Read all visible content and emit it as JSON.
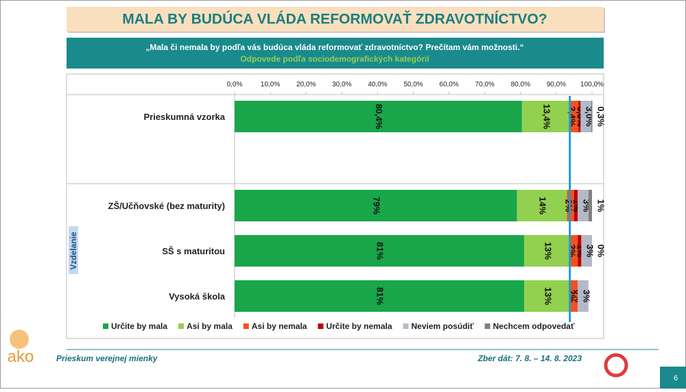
{
  "chart_data": {
    "type": "stacked-barh",
    "title": "MALA BY BUDÚCA VLÁDA REFORMOVAŤ ZDRAVOTNÍCTVO?",
    "subtitle": "„Mala či nemala by podľa vás budúca vláda reformovať zdravotníctvo? Prečítam vám možnosti.“",
    "subtitle2": "Odpovede podľa sociodemografických kategórií",
    "group_label": "Vzdelanie",
    "categories": [
      "Prieskumná vzorka",
      "ZŠ/Učňovské (bez maturity)",
      "SŠ s maturitou",
      "Vysoká škola"
    ],
    "xlim": [
      0,
      100
    ],
    "xticks": [
      {
        "value": 0,
        "label": "0,0%"
      },
      {
        "value": 10,
        "label": "10,0%"
      },
      {
        "value": 20,
        "label": "20,0%"
      },
      {
        "value": 30,
        "label": "30,0%"
      },
      {
        "value": 40,
        "label": "40,0%"
      },
      {
        "value": 50,
        "label": "50,0%"
      },
      {
        "value": 60,
        "label": "60,0%"
      },
      {
        "value": 70,
        "label": "70,0%"
      },
      {
        "value": 80,
        "label": "80,0%"
      },
      {
        "value": 90,
        "label": "90,0%"
      },
      {
        "value": 100,
        "label": "100,0%"
      }
    ],
    "reference_x": 93.8,
    "reference_color": "#1f9bd7",
    "series": [
      {
        "name": "Určite by mala",
        "color": "#1aa64a",
        "values": [
          80.4,
          79,
          81,
          81
        ],
        "value_labels": [
          "80,4%",
          "79%",
          "81%",
          "81%"
        ]
      },
      {
        "name": "Asi by mala",
        "color": "#92d050",
        "values": [
          13.4,
          14,
          13,
          13
        ],
        "value_labels": [
          "13,4%",
          "14%",
          "13%",
          "13%"
        ]
      },
      {
        "name": "Asi by nemala",
        "color": "#f4511e",
        "values": [
          2.4,
          2,
          2,
          2
        ],
        "value_labels": [
          "2,4%",
          "2%",
          "2%",
          "2%"
        ]
      },
      {
        "name": "Určite by nemala",
        "color": "#c00000",
        "values": [
          0.6,
          1,
          1,
          0
        ],
        "value_labels": [
          "0,6%",
          "1%",
          "1%",
          "0%"
        ]
      },
      {
        "name": "Neviem posúdiť",
        "color": "#b4b9c8",
        "values": [
          3.0,
          3,
          3,
          3
        ],
        "value_labels": [
          "3,0%",
          "3%",
          "3%",
          "3%"
        ]
      },
      {
        "name": "Nechcem odpovedať",
        "color": "#808080",
        "values": [
          0.3,
          1,
          0,
          null
        ],
        "value_labels": [
          "0,3%",
          "1%",
          "0%",
          null
        ]
      }
    ]
  },
  "footer": {
    "left": "Prieskum verejnej mienky",
    "right": "Zber dát: 7. 8. – 14. 8. 2023",
    "page": "6",
    "logo": "ako"
  }
}
